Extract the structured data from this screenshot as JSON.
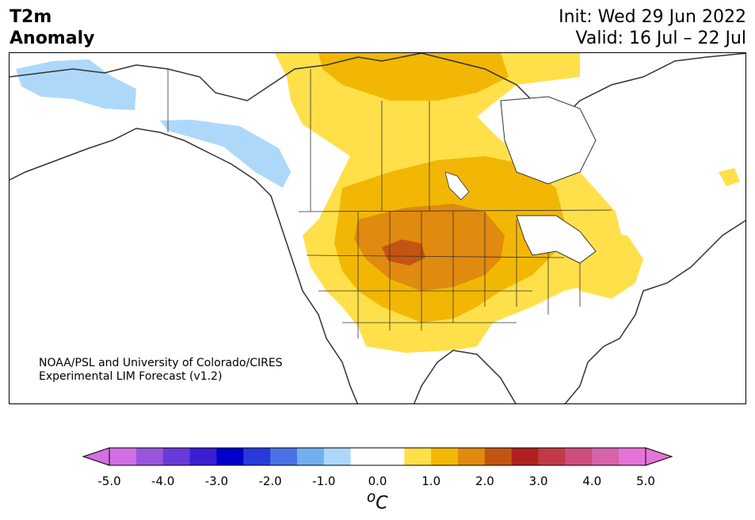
{
  "title": {
    "line1": "T2m",
    "line2": "Anomaly"
  },
  "dates": {
    "init": "Init: Wed 29 Jun 2022",
    "valid": "Valid: 16 Jul – 22 Jul"
  },
  "credit": {
    "line1": "NOAA/PSL and University of Colorado/CIRES",
    "line2": "Experimental LIM Forecast (v1.2)"
  },
  "colorbar": {
    "unit_label": "oC",
    "unit_base": "C",
    "unit_super": "o",
    "ticks": [
      "-5.0",
      "-4.0",
      "-3.0",
      "-2.0",
      "-1.0",
      "0.0",
      "1.0",
      "2.0",
      "3.0",
      "4.0",
      "5.0"
    ],
    "colors": [
      "#d36fe6",
      "#9a54de",
      "#6a3ad9",
      "#3a1fd1",
      "#0000cc",
      "#2a3ad9",
      "#4a72e6",
      "#72aef0",
      "#aed8fa",
      "#ffffff",
      "#ffffff",
      "#ffe04a",
      "#f2b705",
      "#e08a0f",
      "#c45412",
      "#b02222",
      "#c23a48",
      "#cd4e7c",
      "#d763ab",
      "#e574d8"
    ],
    "under_color": "#d36fe6",
    "over_color": "#e574d8"
  },
  "map_colors": {
    "land_outline": "#333333",
    "cold_1": "#aed8fa",
    "warm_1": "#ffe04a",
    "warm_2": "#f2b705",
    "warm_3": "#e08a0f",
    "warm_4": "#c45412"
  }
}
